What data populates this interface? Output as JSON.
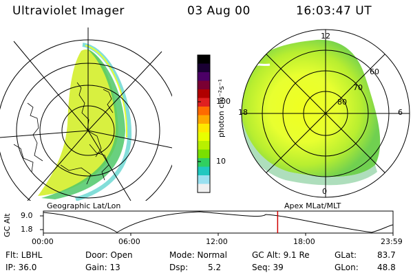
{
  "header": {
    "instrument": "Ultraviolet Imager",
    "date": "03 Aug 00",
    "time": "16:03:47 UT"
  },
  "left_panel": {
    "caption": "Geographic Lat/Lon"
  },
  "right_panel": {
    "caption": "Apex MLat/MLT",
    "mlt_labels": [
      "12",
      "18",
      "6",
      "0"
    ],
    "lat_labels": [
      "60",
      "70",
      "80"
    ]
  },
  "colorbar": {
    "unit_label": "photon cm⁻²s⁻¹",
    "ticks": [
      "100",
      "10"
    ],
    "colors": [
      "#000000",
      "#1a0033",
      "#4b0066",
      "#7a0033",
      "#b00000",
      "#e02020",
      "#ff6a00",
      "#ffa800",
      "#ffe800",
      "#e8ff00",
      "#b8f000",
      "#7ae000",
      "#30d060",
      "#20c8c0",
      "#9ae0f0",
      "#f0f0f0"
    ]
  },
  "altitude_plot": {
    "ylabel": "GC Alt",
    "yticks": [
      "9.0",
      "1.8"
    ],
    "xticks": [
      "00:00",
      "06:00",
      "12:00",
      "18:00",
      "23:59"
    ],
    "current_time_fraction": 0.67
  },
  "status": {
    "flt": "Flt: LBHL",
    "ip": "IP: 36.0",
    "door": "Door: Open",
    "gain": "Gain: 13",
    "mode": "Mode: Normal",
    "dsp_label": "Dsp:",
    "dsp_value": "5.2",
    "gc_alt": "GC Alt: 9.1 Re",
    "seq": "Seq: 39",
    "glat_label": "GLat:",
    "glat_value": "83.7",
    "glon_label": "GLon:",
    "glon_value": "48.8"
  }
}
